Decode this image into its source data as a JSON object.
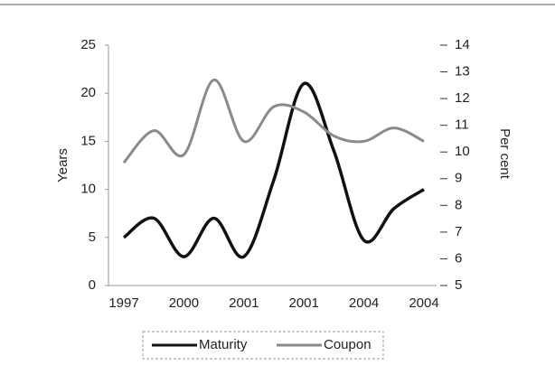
{
  "chart_data": {
    "type": "line",
    "categories": [
      "1997",
      null,
      "2000",
      null,
      "2001",
      null,
      "2001",
      null,
      "2004",
      null,
      "2004"
    ],
    "ylabel": "Years",
    "y2label": "Per cent",
    "ylim": [
      0,
      25
    ],
    "yticks": [
      0,
      5,
      10,
      15,
      20,
      25
    ],
    "y2lim": [
      5,
      14
    ],
    "y2ticks": [
      5,
      6,
      7,
      8,
      9,
      10,
      11,
      12,
      13,
      14
    ],
    "legend": "bottom",
    "series": [
      {
        "name": "Maturity",
        "color": "#111111",
        "values": [
          5,
          7,
          3,
          7,
          3,
          11,
          21,
          14,
          4.7,
          8,
          10
        ]
      },
      {
        "name": "Coupon",
        "color": "#8a8a8a",
        "axis": "y2",
        "values": [
          9.6,
          10.8,
          9.9,
          12.7,
          10.4,
          11.7,
          11.5,
          10.6,
          10.4,
          10.9,
          10.4
        ]
      }
    ]
  }
}
